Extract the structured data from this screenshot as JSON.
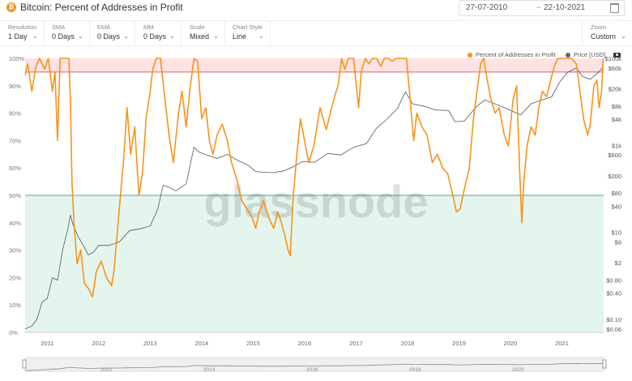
{
  "header": {
    "title": "Bitcoin: Percent of Addresses in Profit",
    "icon": "bitcoin-icon",
    "date_from": "27-07-2010",
    "date_to": "22-10-2021",
    "arrow": "→"
  },
  "controls": [
    {
      "label": "Resolution",
      "value": "1 Day"
    },
    {
      "label": "SMA",
      "value": "0 Days"
    },
    {
      "label": "EMA",
      "value": "0 Days"
    },
    {
      "label": "MM",
      "value": "0 Days"
    },
    {
      "label": "Scale",
      "value": "Mixed"
    },
    {
      "label": "Chart Style",
      "value": "Line"
    }
  ],
  "zoom": {
    "label": "Zoom",
    "value": "Custom"
  },
  "colors": {
    "profit": "#f7931a",
    "price": "#555555",
    "upper_band": "#fde3e3",
    "lower_band": "#e4f5ee"
  },
  "watermark": "glassnode",
  "chart_data": {
    "type": "line",
    "title": "Bitcoin: Percent of Addresses in Profit",
    "x_ticks": [
      "2011",
      "2012",
      "2013",
      "2014",
      "2015",
      "2016",
      "2017",
      "2018",
      "2019",
      "2020",
      "2021"
    ],
    "navigator_ticks": [
      "2012",
      "2014",
      "2016",
      "2018",
      "2020"
    ],
    "left_axis": {
      "ticks": [
        "0%",
        "10%",
        "20%",
        "30%",
        "40%",
        "50%",
        "60%",
        "70%",
        "80%",
        "90%",
        "100%"
      ],
      "range": [
        0,
        100
      ],
      "unit": "%"
    },
    "right_axis": {
      "scale": "log",
      "ticks": [
        "$0.06",
        "$0.10",
        "$0.40",
        "$0.80",
        "$2",
        "$6",
        "$10",
        "$40",
        "$80",
        "$200",
        "$600",
        "$1k",
        "$4k",
        "$8k",
        "$20k",
        "$60k",
        "$100k"
      ]
    },
    "bands": [
      {
        "from": 95,
        "to": 100
      },
      {
        "from": 0,
        "to": 50
      }
    ],
    "legend": {
      "position": "top-right",
      "items": [
        "Percent of Addresses in Profit",
        "Price [USD]"
      ]
    },
    "grid": false,
    "series": [
      {
        "name": "Percent of Addresses in Profit",
        "axis": "left",
        "points": [
          [
            2010.57,
            94
          ],
          [
            2010.62,
            98
          ],
          [
            2010.7,
            88
          ],
          [
            2010.78,
            97
          ],
          [
            2010.85,
            100
          ],
          [
            2010.95,
            96
          ],
          [
            2011.02,
            100
          ],
          [
            2011.1,
            88
          ],
          [
            2011.15,
            95
          ],
          [
            2011.2,
            70
          ],
          [
            2011.25,
            100
          ],
          [
            2011.35,
            100
          ],
          [
            2011.42,
            100
          ],
          [
            2011.45,
            85
          ],
          [
            2011.48,
            55
          ],
          [
            2011.52,
            40
          ],
          [
            2011.58,
            25
          ],
          [
            2011.65,
            30
          ],
          [
            2011.72,
            18
          ],
          [
            2011.8,
            16
          ],
          [
            2011.88,
            13
          ],
          [
            2011.95,
            22
          ],
          [
            2012.05,
            26
          ],
          [
            2012.15,
            20
          ],
          [
            2012.25,
            17
          ],
          [
            2012.3,
            23
          ],
          [
            2012.4,
            45
          ],
          [
            2012.48,
            62
          ],
          [
            2012.55,
            82
          ],
          [
            2012.62,
            65
          ],
          [
            2012.7,
            75
          ],
          [
            2012.78,
            50
          ],
          [
            2012.85,
            58
          ],
          [
            2012.92,
            78
          ],
          [
            2013.0,
            88
          ],
          [
            2013.05,
            96
          ],
          [
            2013.12,
            100
          ],
          [
            2013.2,
            100
          ],
          [
            2013.27,
            88
          ],
          [
            2013.33,
            78
          ],
          [
            2013.38,
            70
          ],
          [
            2013.45,
            62
          ],
          [
            2013.55,
            80
          ],
          [
            2013.62,
            88
          ],
          [
            2013.7,
            75
          ],
          [
            2013.78,
            90
          ],
          [
            2013.85,
            100
          ],
          [
            2013.92,
            99
          ],
          [
            2014.0,
            78
          ],
          [
            2014.08,
            82
          ],
          [
            2014.15,
            70
          ],
          [
            2014.22,
            65
          ],
          [
            2014.3,
            72
          ],
          [
            2014.4,
            76
          ],
          [
            2014.5,
            70
          ],
          [
            2014.58,
            62
          ],
          [
            2014.68,
            56
          ],
          [
            2014.78,
            48
          ],
          [
            2014.88,
            45
          ],
          [
            2014.98,
            42
          ],
          [
            2015.05,
            38
          ],
          [
            2015.12,
            44
          ],
          [
            2015.2,
            48
          ],
          [
            2015.3,
            42
          ],
          [
            2015.4,
            38
          ],
          [
            2015.48,
            44
          ],
          [
            2015.55,
            40
          ],
          [
            2015.62,
            35
          ],
          [
            2015.68,
            30
          ],
          [
            2015.72,
            28
          ],
          [
            2015.78,
            50
          ],
          [
            2015.85,
            65
          ],
          [
            2015.92,
            78
          ],
          [
            2016.0,
            70
          ],
          [
            2016.08,
            62
          ],
          [
            2016.18,
            68
          ],
          [
            2016.3,
            82
          ],
          [
            2016.42,
            74
          ],
          [
            2016.5,
            80
          ],
          [
            2016.58,
            86
          ],
          [
            2016.65,
            90
          ],
          [
            2016.72,
            100
          ],
          [
            2016.78,
            96
          ],
          [
            2016.85,
            100
          ],
          [
            2016.95,
            100
          ],
          [
            2017.05,
            82
          ],
          [
            2017.1,
            95
          ],
          [
            2017.18,
            100
          ],
          [
            2017.25,
            98
          ],
          [
            2017.32,
            100
          ],
          [
            2017.4,
            100
          ],
          [
            2017.48,
            97
          ],
          [
            2017.55,
            100
          ],
          [
            2017.62,
            100
          ],
          [
            2017.7,
            99
          ],
          [
            2017.78,
            100
          ],
          [
            2017.85,
            100
          ],
          [
            2017.92,
            100
          ],
          [
            2017.98,
            100
          ],
          [
            2018.05,
            85
          ],
          [
            2018.12,
            70
          ],
          [
            2018.18,
            80
          ],
          [
            2018.28,
            75
          ],
          [
            2018.38,
            72
          ],
          [
            2018.48,
            62
          ],
          [
            2018.58,
            65
          ],
          [
            2018.68,
            60
          ],
          [
            2018.78,
            58
          ],
          [
            2018.88,
            50
          ],
          [
            2018.95,
            44
          ],
          [
            2019.02,
            45
          ],
          [
            2019.1,
            52
          ],
          [
            2019.2,
            60
          ],
          [
            2019.28,
            78
          ],
          [
            2019.35,
            88
          ],
          [
            2019.42,
            98
          ],
          [
            2019.48,
            100
          ],
          [
            2019.55,
            92
          ],
          [
            2019.62,
            85
          ],
          [
            2019.7,
            80
          ],
          [
            2019.78,
            82
          ],
          [
            2019.88,
            72
          ],
          [
            2019.96,
            68
          ],
          [
            2020.05,
            85
          ],
          [
            2020.12,
            90
          ],
          [
            2020.18,
            58
          ],
          [
            2020.22,
            40
          ],
          [
            2020.26,
            55
          ],
          [
            2020.32,
            68
          ],
          [
            2020.4,
            75
          ],
          [
            2020.48,
            72
          ],
          [
            2020.55,
            82
          ],
          [
            2020.62,
            88
          ],
          [
            2020.7,
            86
          ],
          [
            2020.78,
            92
          ],
          [
            2020.85,
            97
          ],
          [
            2020.92,
            100
          ],
          [
            2021.0,
            100
          ],
          [
            2021.08,
            100
          ],
          [
            2021.18,
            100
          ],
          [
            2021.28,
            98
          ],
          [
            2021.35,
            88
          ],
          [
            2021.42,
            78
          ],
          [
            2021.5,
            72
          ],
          [
            2021.55,
            76
          ],
          [
            2021.62,
            90
          ],
          [
            2021.68,
            92
          ],
          [
            2021.72,
            82
          ],
          [
            2021.77,
            88
          ],
          [
            2021.8,
            100
          ]
        ]
      },
      {
        "name": "Price [USD]",
        "axis": "right",
        "points": [
          [
            2010.57,
            0.06
          ],
          [
            2010.7,
            0.07
          ],
          [
            2010.8,
            0.1
          ],
          [
            2010.9,
            0.25
          ],
          [
            2011.0,
            0.3
          ],
          [
            2011.1,
            0.9
          ],
          [
            2011.2,
            0.8
          ],
          [
            2011.3,
            4
          ],
          [
            2011.4,
            12
          ],
          [
            2011.45,
            25
          ],
          [
            2011.5,
            15
          ],
          [
            2011.6,
            8
          ],
          [
            2011.7,
            5
          ],
          [
            2011.8,
            3
          ],
          [
            2011.9,
            3.5
          ],
          [
            2012.0,
            5
          ],
          [
            2012.2,
            5
          ],
          [
            2012.4,
            6
          ],
          [
            2012.6,
            11
          ],
          [
            2012.8,
            12
          ],
          [
            2013.0,
            14
          ],
          [
            2013.15,
            35
          ],
          [
            2013.25,
            120
          ],
          [
            2013.35,
            110
          ],
          [
            2013.5,
            90
          ],
          [
            2013.7,
            130
          ],
          [
            2013.85,
            900
          ],
          [
            2013.95,
            700
          ],
          [
            2014.1,
            600
          ],
          [
            2014.3,
            500
          ],
          [
            2014.5,
            620
          ],
          [
            2014.7,
            450
          ],
          [
            2014.9,
            350
          ],
          [
            2015.05,
            250
          ],
          [
            2015.2,
            240
          ],
          [
            2015.4,
            235
          ],
          [
            2015.6,
            260
          ],
          [
            2015.8,
            330
          ],
          [
            2015.95,
            420
          ],
          [
            2016.2,
            410
          ],
          [
            2016.45,
            650
          ],
          [
            2016.7,
            600
          ],
          [
            2016.95,
            900
          ],
          [
            2017.2,
            1100
          ],
          [
            2017.4,
            2500
          ],
          [
            2017.6,
            4000
          ],
          [
            2017.8,
            7000
          ],
          [
            2017.96,
            17000
          ],
          [
            2018.1,
            9000
          ],
          [
            2018.3,
            8000
          ],
          [
            2018.55,
            6500
          ],
          [
            2018.8,
            6300
          ],
          [
            2018.92,
            3500
          ],
          [
            2019.1,
            3600
          ],
          [
            2019.35,
            8000
          ],
          [
            2019.5,
            11000
          ],
          [
            2019.7,
            9000
          ],
          [
            2019.9,
            7200
          ],
          [
            2020.2,
            5000
          ],
          [
            2020.4,
            9000
          ],
          [
            2020.6,
            11000
          ],
          [
            2020.8,
            13000
          ],
          [
            2020.95,
            28000
          ],
          [
            2021.1,
            47000
          ],
          [
            2021.28,
            60000
          ],
          [
            2021.4,
            38000
          ],
          [
            2021.55,
            33000
          ],
          [
            2021.7,
            47000
          ],
          [
            2021.8,
            62000
          ]
        ]
      }
    ]
  }
}
